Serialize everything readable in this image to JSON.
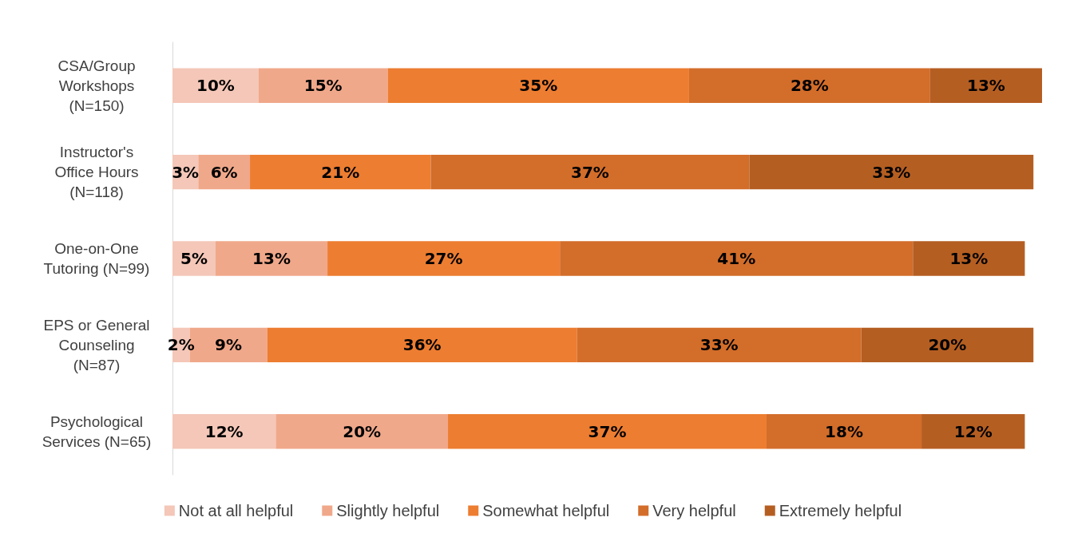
{
  "chart_data": {
    "type": "bar",
    "orientation": "horizontal",
    "stacked": true,
    "legend": "bottom",
    "grid": false,
    "categories": [
      "CSA/Group\nWorkshops\n(N=150)",
      "Instructor's\nOffice Hours\n(N=118)",
      "One-on-One\nTutoring (N=99)",
      "EPS or General\nCounseling\n(N=87)",
      "Psychological\nServices (N=65)"
    ],
    "series": [
      {
        "name": "Not at all helpful",
        "color": "#f4c7b8",
        "values": [
          10,
          3,
          5,
          2,
          12
        ],
        "value_labels": [
          "10%",
          "3%",
          "5%",
          "2%",
          "12%"
        ]
      },
      {
        "name": "Slightly helpful",
        "color": "#f0a88a",
        "values": [
          15,
          6,
          13,
          9,
          20
        ],
        "value_labels": [
          "15%",
          "6%",
          "13%",
          "9%",
          "20%"
        ]
      },
      {
        "name": "Somewhat helpful",
        "color": "#ed7d31",
        "values": [
          35,
          21,
          27,
          36,
          37
        ],
        "value_labels": [
          "35%",
          "21%",
          "27%",
          "36%",
          "37%"
        ]
      },
      {
        "name": "Very helpful",
        "color": "#d36d2a",
        "values": [
          28,
          37,
          41,
          33,
          18
        ],
        "value_labels": [
          "28%",
          "37%",
          "41%",
          "33%",
          "18%"
        ]
      },
      {
        "name": "Extremely helpful",
        "color": "#b55e22",
        "values": [
          13,
          33,
          13,
          20,
          12
        ],
        "value_labels": [
          "13%",
          "33%",
          "13%",
          "20%",
          "12%"
        ]
      }
    ]
  }
}
